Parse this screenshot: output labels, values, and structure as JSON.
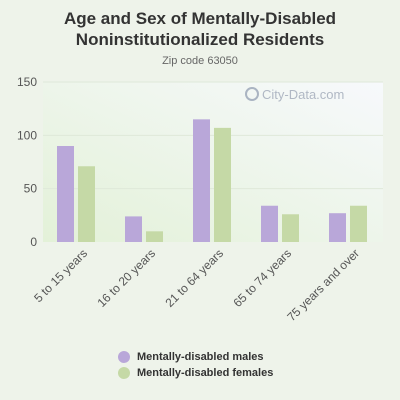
{
  "title_lines": [
    "Age and Sex of Mentally-Disabled",
    "Noninstitutionalized Residents"
  ],
  "subtitle": "Zip code 63050",
  "watermark": "City-Data.com",
  "colors": {
    "males": "#b9a7d9",
    "females": "#c5d9a6",
    "background": "#eef3ea"
  },
  "chart_data": {
    "type": "bar",
    "categories": [
      "5 to 15 years",
      "16 to 20 years",
      "21 to 64 years",
      "65 to 74 years",
      "75 years and over"
    ],
    "series": [
      {
        "name": "Mentally-disabled males",
        "values": [
          90,
          24,
          115,
          34,
          27
        ]
      },
      {
        "name": "Mentally-disabled females",
        "values": [
          71,
          10,
          107,
          26,
          34
        ]
      }
    ],
    "yticks": [
      "0",
      "50",
      "100",
      "150"
    ],
    "ylim": [
      0,
      150
    ],
    "grid": true,
    "legend": "bottom"
  }
}
